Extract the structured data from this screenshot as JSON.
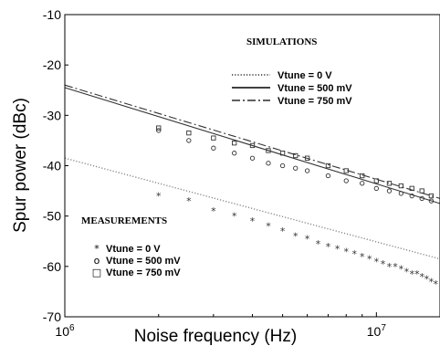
{
  "chart_data": {
    "type": "scatter",
    "xlabel": "Noise frequency (Hz)",
    "ylabel": "Spur power (dBc)",
    "x_scale": "log",
    "xlim": [
      1000000,
      16000000
    ],
    "ylim": [
      -70,
      -10
    ],
    "x_ticks": [
      {
        "value": 1000000,
        "base": "10",
        "exp": "6"
      },
      {
        "value": 10000000,
        "base": "10",
        "exp": "7"
      }
    ],
    "y_ticks": [
      "-10",
      "-20",
      "-30",
      "-40",
      "-50",
      "-60",
      "-70"
    ],
    "grid": false,
    "simulations_title": "SIMULATIONS",
    "measurements_title": "MEASUREMENTS",
    "simulations": [
      {
        "name": "Vtune = 0 V",
        "style": "dotted",
        "x": [
          1000000,
          16000000
        ],
        "y": [
          -38.5,
          -58.5
        ]
      },
      {
        "name": "Vtune = 500 mV",
        "style": "solid",
        "x": [
          1000000,
          16000000
        ],
        "y": [
          -24.5,
          -47.5
        ]
      },
      {
        "name": "Vtune = 750 mV",
        "style": "dashdot",
        "x": [
          1000000,
          16000000
        ],
        "y": [
          -24.0,
          -46.5
        ]
      }
    ],
    "measurements": [
      {
        "name": "Vtune = 0 V",
        "marker": "*",
        "x": [
          2000000,
          2500000,
          3000000,
          3500000,
          4000000,
          4500000,
          5000000,
          5500000,
          6000000,
          6500000,
          7000000,
          7500000,
          8000000,
          8500000,
          9000000,
          9500000,
          10000000,
          10500000,
          11000000,
          11500000,
          12000000,
          12500000,
          13000000,
          13500000,
          14000000,
          14500000,
          15000000,
          15500000
        ],
        "y": [
          -46.0,
          -47.0,
          -49.0,
          -50.0,
          -51.0,
          -52.0,
          -53.0,
          -54.0,
          -54.5,
          -55.5,
          -56.0,
          -56.5,
          -57.0,
          -57.5,
          -58.0,
          -58.5,
          -59.0,
          -59.5,
          -60.0,
          -60.0,
          -60.5,
          -61.0,
          -61.5,
          -61.5,
          -62.0,
          -62.5,
          -63.0,
          -63.5
        ]
      },
      {
        "name": "Vtune = 500 mV",
        "marker": "o",
        "x": [
          2000000,
          2500000,
          3000000,
          3500000,
          4000000,
          4500000,
          5000000,
          5500000,
          6000000,
          7000000,
          8000000,
          9000000,
          10000000,
          11000000,
          12000000,
          13000000,
          14000000,
          15000000
        ],
        "y": [
          -33.0,
          -35.0,
          -36.5,
          -37.5,
          -38.5,
          -39.5,
          -40.0,
          -40.5,
          -41.0,
          -42.0,
          -43.0,
          -43.5,
          -44.5,
          -45.0,
          -45.5,
          -46.0,
          -46.5,
          -47.0
        ]
      },
      {
        "name": "Vtune = 750 mV",
        "marker": "□",
        "x": [
          2000000,
          2500000,
          3000000,
          3500000,
          4000000,
          4500000,
          5000000,
          5500000,
          6000000,
          7000000,
          8000000,
          9000000,
          10000000,
          11000000,
          12000000,
          13000000,
          14000000,
          15000000
        ],
        "y": [
          -32.5,
          -33.5,
          -34.5,
          -35.5,
          -36.0,
          -37.0,
          -37.5,
          -38.0,
          -38.5,
          -40.0,
          -41.0,
          -42.0,
          -43.0,
          -43.5,
          -44.0,
          -44.5,
          -45.0,
          -46.0
        ]
      }
    ]
  }
}
